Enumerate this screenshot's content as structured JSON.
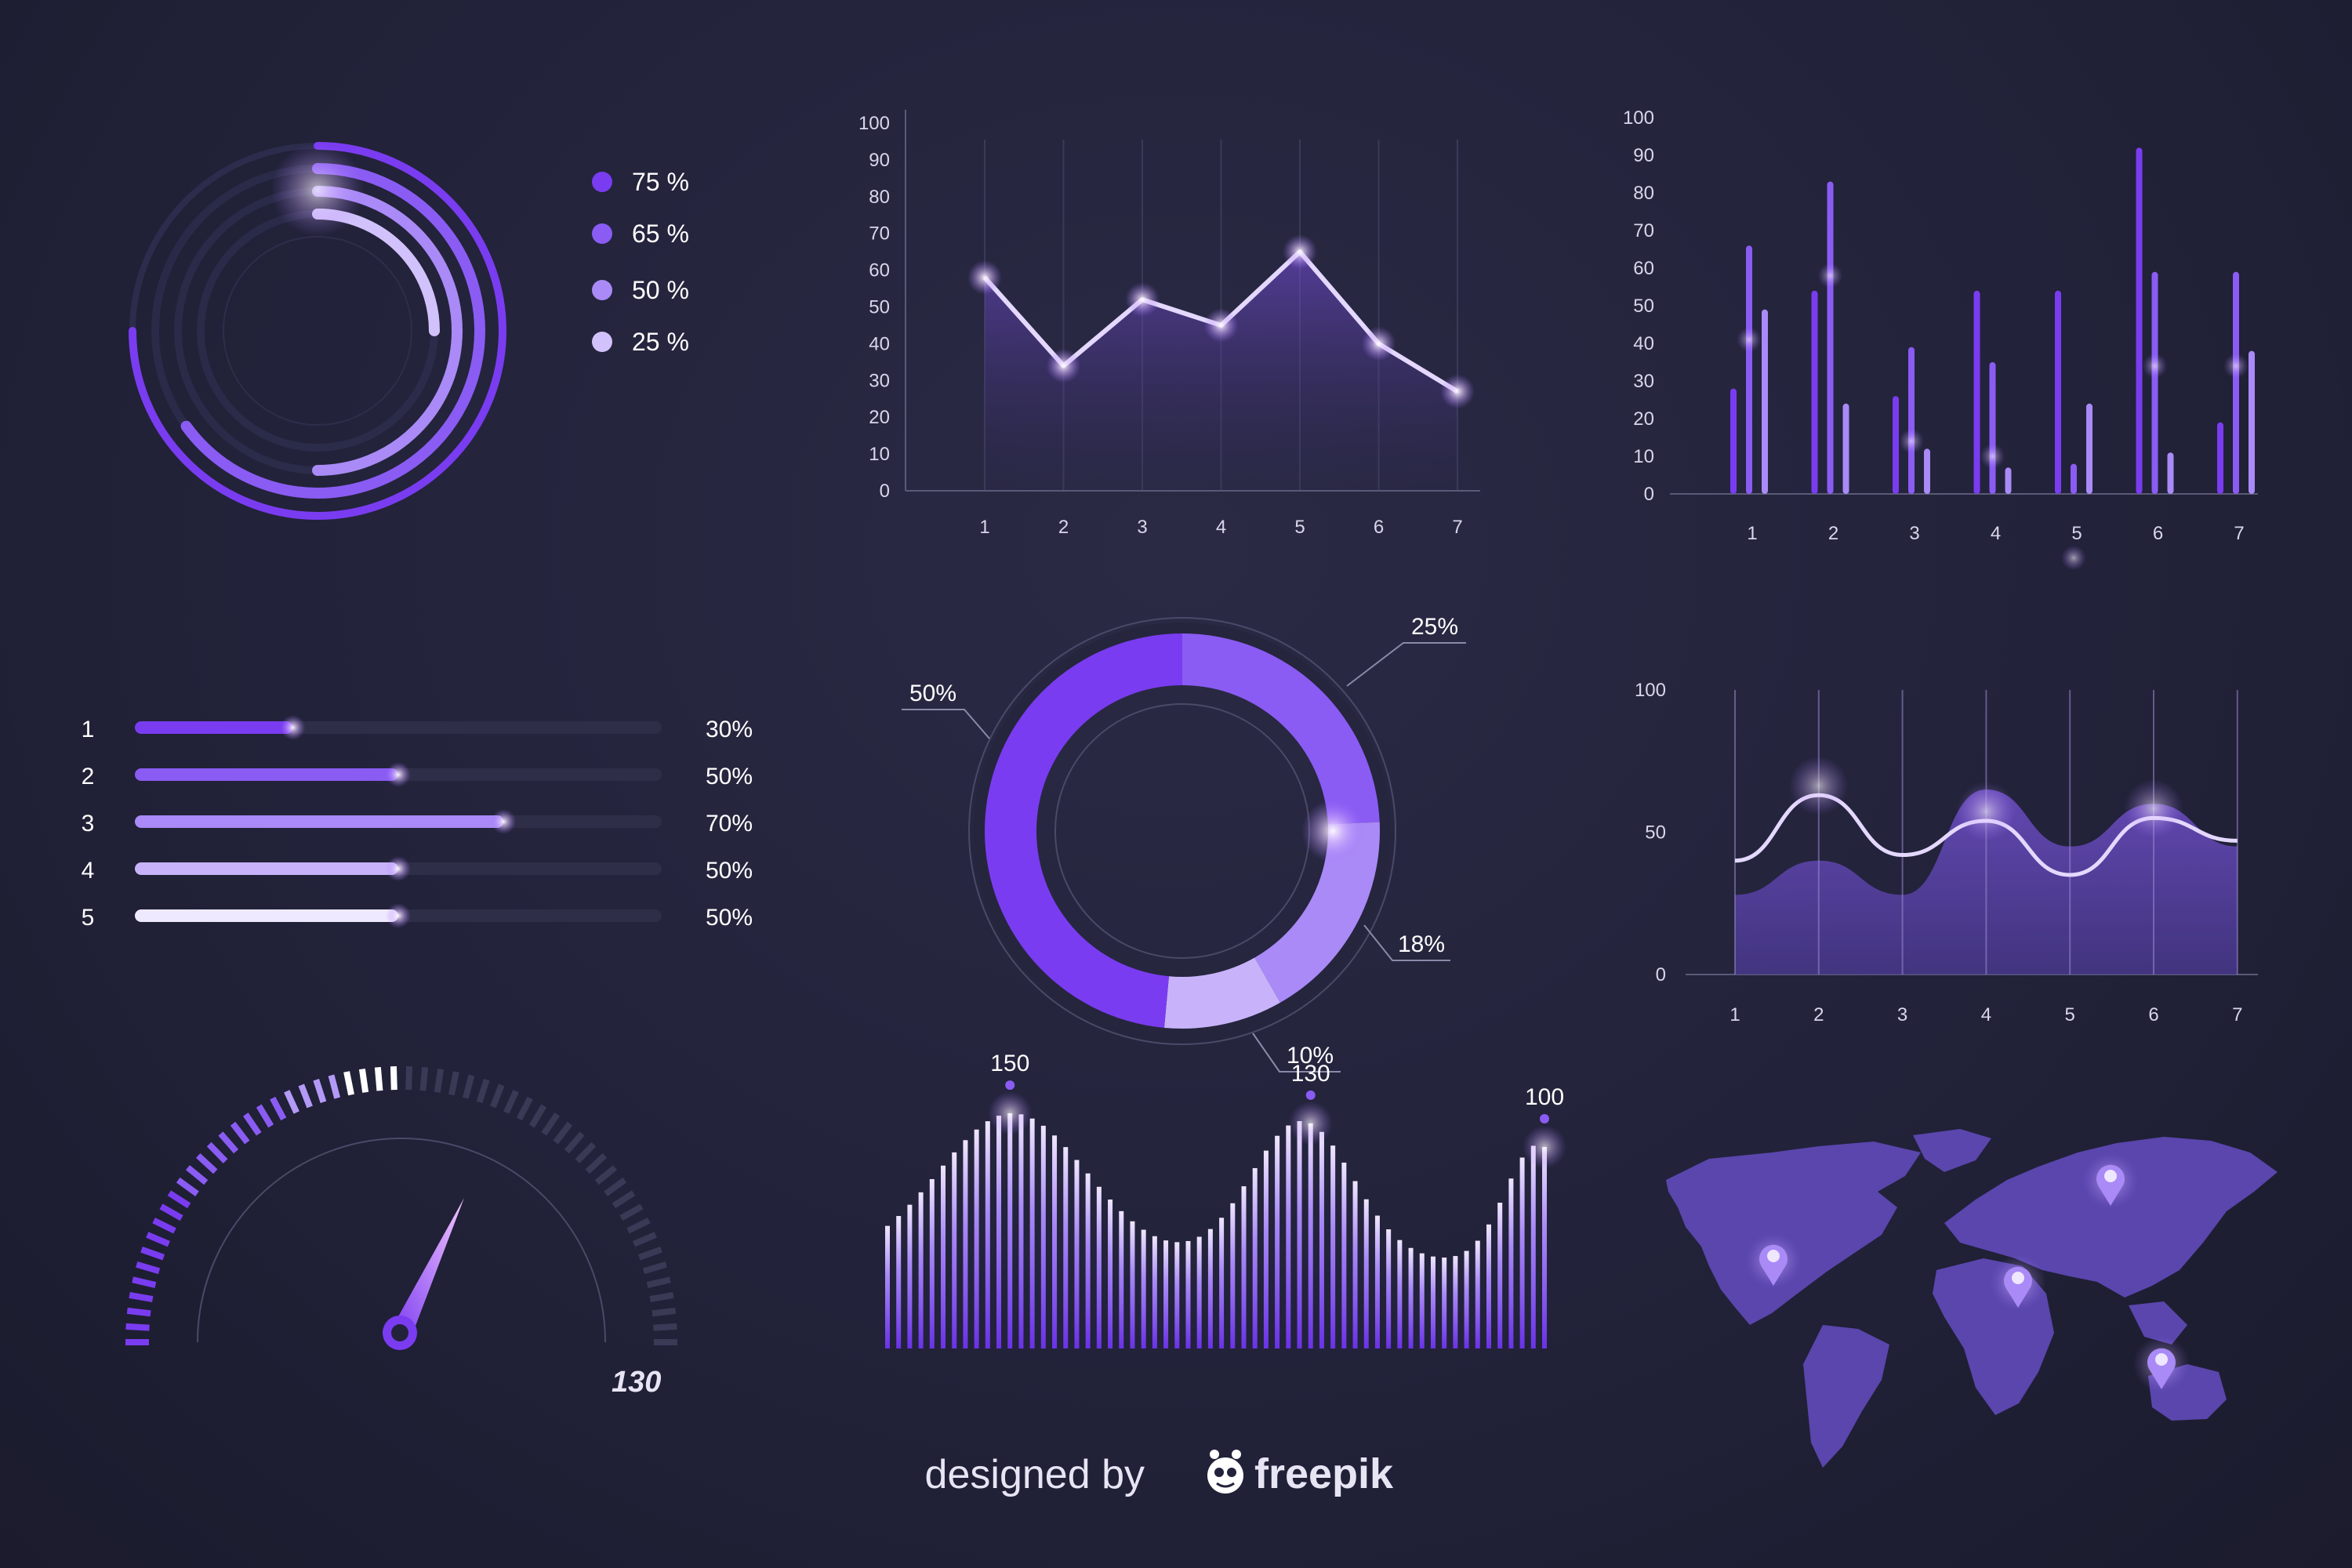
{
  "colors": {
    "background": "#22223a",
    "purple_1": "#7a3cf0",
    "purple_2": "#8a5cf3",
    "purple_3": "#a98af6",
    "purple_4": "#d2c2fb",
    "grid": "#3a3a58",
    "text": "#ffffff"
  },
  "chart_data": [
    {
      "id": "radial-rings",
      "type": "pie",
      "series": [
        {
          "label": "75 %",
          "value": 75
        },
        {
          "label": "65 %",
          "value": 65
        },
        {
          "label": "50 %",
          "value": 50
        },
        {
          "label": "25 %",
          "value": 25
        }
      ]
    },
    {
      "id": "line-chart",
      "type": "line",
      "x": [
        1,
        2,
        3,
        4,
        5,
        6,
        7
      ],
      "values": [
        58,
        34,
        52,
        45,
        65,
        40,
        27
      ],
      "ylim": [
        0,
        100
      ],
      "yticks": [
        0,
        10,
        20,
        30,
        40,
        50,
        60,
        70,
        80,
        90,
        100
      ],
      "grid": true
    },
    {
      "id": "grouped-bars",
      "type": "bar",
      "categories": [
        "1",
        "2",
        "3",
        "4",
        "5",
        "6",
        "7"
      ],
      "series": [
        {
          "values": [
            28,
            54,
            26,
            54,
            54,
            92,
            19
          ]
        },
        {
          "values": [
            66,
            83,
            39,
            35,
            8,
            59,
            59
          ]
        },
        {
          "values": [
            49,
            24,
            12,
            7,
            24,
            11,
            38
          ]
        }
      ],
      "ylim": [
        0,
        100
      ],
      "yticks": [
        0,
        10,
        20,
        30,
        40,
        50,
        60,
        70,
        80,
        90,
        100
      ]
    },
    {
      "id": "progress-bars",
      "type": "bar",
      "categories": [
        "1",
        "2",
        "3",
        "4",
        "5"
      ],
      "values": [
        30,
        50,
        70,
        50,
        50
      ],
      "value_labels": [
        "30%",
        "50%",
        "70%",
        "50%",
        "50%"
      ]
    },
    {
      "id": "donut",
      "type": "pie",
      "slices": [
        {
          "label": "25%",
          "value": 25
        },
        {
          "label": "18%",
          "value": 18
        },
        {
          "label": "10%",
          "value": 10
        },
        {
          "label": "50%",
          "value": 50
        }
      ]
    },
    {
      "id": "wave-area",
      "type": "area",
      "x": [
        1,
        2,
        3,
        4,
        5,
        6,
        7
      ],
      "series": [
        {
          "values": [
            40,
            63,
            42,
            54,
            35,
            55,
            47
          ]
        },
        {
          "values": [
            28,
            40,
            28,
            65,
            45,
            60,
            45
          ]
        }
      ],
      "ylim": [
        0,
        100
      ],
      "yticks": [
        0,
        50,
        100
      ],
      "grid": true
    },
    {
      "id": "gauge",
      "type": "bar",
      "value": 130,
      "level": 0.5,
      "value_label": "130"
    },
    {
      "id": "wave-bars",
      "type": "bar",
      "peaks": [
        {
          "label": "150",
          "value": 150
        },
        {
          "label": "130",
          "value": 130
        },
        {
          "label": "100",
          "value": 100
        }
      ]
    }
  ],
  "map": {
    "markers": [
      "north-america-marker",
      "africa-marker",
      "asia-marker",
      "australia-marker"
    ]
  },
  "footer": {
    "designed_by": "designed by",
    "brand": "freepik"
  }
}
